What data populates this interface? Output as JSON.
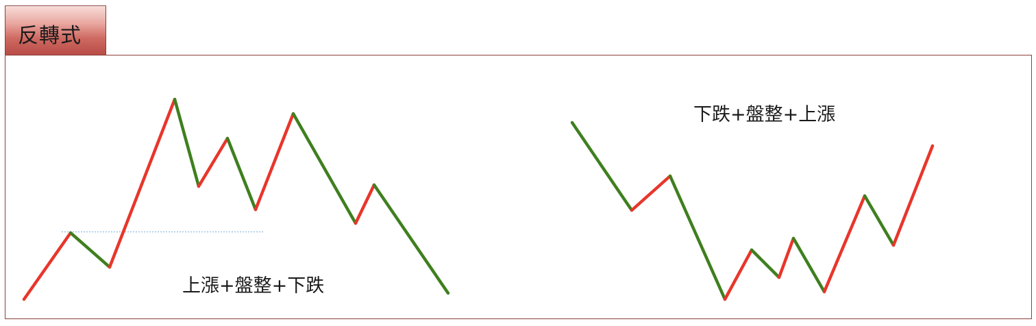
{
  "title": "反轉式",
  "patterns": [
    {
      "caption": "上漲+盤整+下跌",
      "kind": "top-reversal",
      "moves": [
        "up",
        "down",
        "up",
        "down",
        "up",
        "down",
        "up",
        "down",
        "up",
        "down"
      ]
    },
    {
      "caption": "下跌+盤整+上漲",
      "kind": "bottom-reversal",
      "moves": [
        "down",
        "up",
        "down",
        "up",
        "down",
        "up",
        "down",
        "up",
        "down",
        "up"
      ]
    }
  ],
  "colors": {
    "up": "#e8362b",
    "down": "#3f7f1f",
    "frame": "#8a3f3a",
    "guide": "#9cc3e6"
  }
}
